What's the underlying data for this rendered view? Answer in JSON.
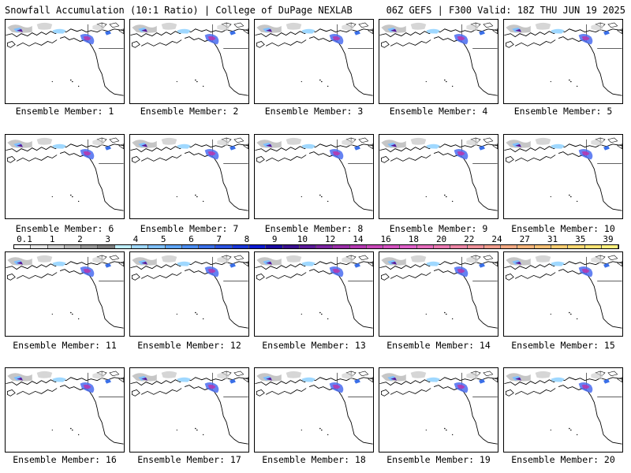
{
  "header": {
    "title_left": "Snowfall Accumulation (10:1 Ratio) | College of DuPage NEXLAB",
    "title_right": "06Z GEFS | F300 Valid: 18Z THU JUN 19 2025"
  },
  "panels": [
    {
      "label": "Ensemble Member: 1"
    },
    {
      "label": "Ensemble Member: 2"
    },
    {
      "label": "Ensemble Member: 3"
    },
    {
      "label": "Ensemble Member: 4"
    },
    {
      "label": "Ensemble Member: 5"
    },
    {
      "label": "Ensemble Member: 6"
    },
    {
      "label": "Ensemble Member: 7"
    },
    {
      "label": "Ensemble Member: 8"
    },
    {
      "label": "Ensemble Member: 9"
    },
    {
      "label": "Ensemble Member: 10"
    },
    {
      "label": "Ensemble Member: 11"
    },
    {
      "label": "Ensemble Member: 12"
    },
    {
      "label": "Ensemble Member: 13"
    },
    {
      "label": "Ensemble Member: 14"
    },
    {
      "label": "Ensemble Member: 15"
    },
    {
      "label": "Ensemble Member: 16"
    },
    {
      "label": "Ensemble Member: 17"
    },
    {
      "label": "Ensemble Member: 18"
    },
    {
      "label": "Ensemble Member: 19"
    },
    {
      "label": "Ensemble Member: 20"
    }
  ],
  "legend": {
    "labels": [
      "0.1",
      "1",
      "2",
      "3",
      "4",
      "5",
      "6",
      "7",
      "8",
      "9",
      "10",
      "12",
      "14",
      "16",
      "18",
      "20",
      "22",
      "24",
      "27",
      "31",
      "35",
      "39"
    ],
    "colors": [
      "#ffffff",
      "#e6e6e6",
      "#cfcfcf",
      "#b4b4b4",
      "#969696",
      "#7c7c7c",
      "#bfefff",
      "#9fd8ff",
      "#7ec0ff",
      "#5ea5f8",
      "#4a8cf0",
      "#3a6fe8",
      "#2a52e0",
      "#1a36d8",
      "#0b1ad0",
      "#1a0aa0",
      "#3a1090",
      "#5a1a98",
      "#7a24a0",
      "#9a2ea8",
      "#b438b0",
      "#c846b8",
      "#d452c0",
      "#de5fc8",
      "#e66cbc",
      "#ea78b0",
      "#ec84a4",
      "#ee9098",
      "#f09c8c",
      "#f2a882",
      "#f4b47a",
      "#f6c074",
      "#f8cc70",
      "#fad870",
      "#fce474",
      "#fef07c"
    ]
  }
}
